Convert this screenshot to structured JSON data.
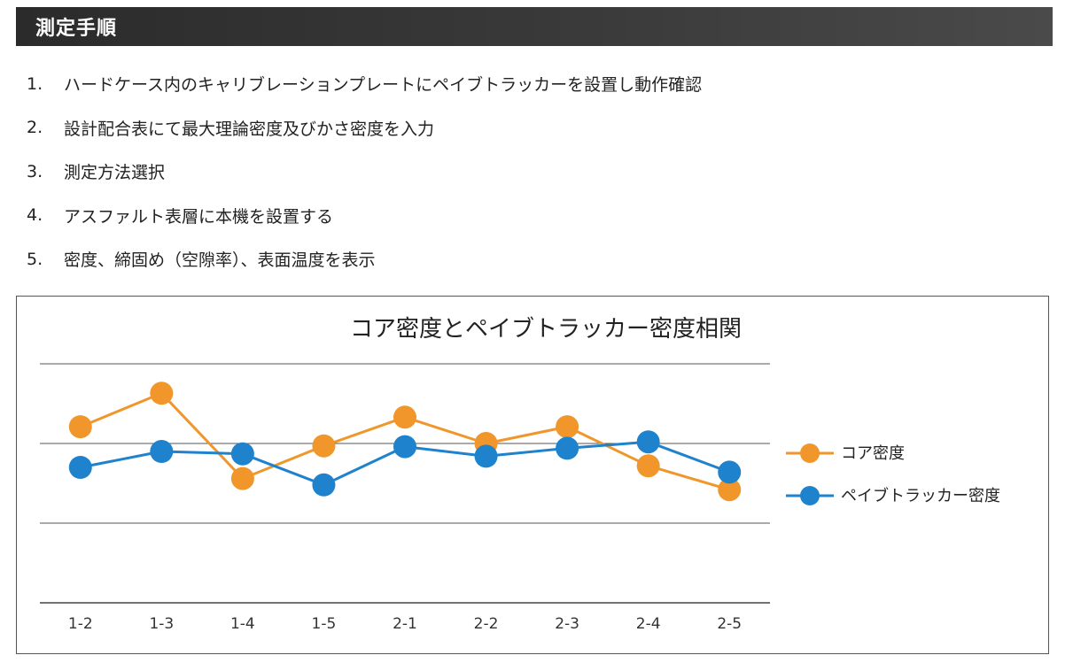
{
  "header": {
    "title": "測定手順"
  },
  "steps": [
    {
      "num": "1.",
      "text": "ハードケース内のキャリブレーションプレートにペイブトラッカーを設置し動作確認"
    },
    {
      "num": "2.",
      "text": "設計配合表にて最大理論密度及びかさ密度を入力"
    },
    {
      "num": "3.",
      "text": "測定方法選択"
    },
    {
      "num": "4.",
      "text": "アスファルト表層に本機を設置する"
    },
    {
      "num": "5.",
      "text": "密度、締固め（空隙率）、表面温度を表示"
    }
  ],
  "chart_data": {
    "type": "line",
    "title": "コア密度とペイブトラッカー密度相関",
    "xlabel": "",
    "ylabel": "",
    "categories": [
      "1-2",
      "1-3",
      "1-4",
      "1-5",
      "2-1",
      "2-2",
      "2-3",
      "2-4",
      "2-5"
    ],
    "ylim": [
      0,
      3
    ],
    "grid": true,
    "legend_position": "right",
    "series": [
      {
        "name": "コア密度",
        "color": "#f0962b",
        "values": [
          2.21,
          2.63,
          1.56,
          1.97,
          2.33,
          2.0,
          2.21,
          1.72,
          1.42
        ]
      },
      {
        "name": "ペイブトラッカー密度",
        "color": "#1f82cc",
        "values": [
          1.7,
          1.9,
          1.87,
          1.48,
          1.96,
          1.84,
          1.94,
          2.02,
          1.64
        ]
      }
    ]
  }
}
